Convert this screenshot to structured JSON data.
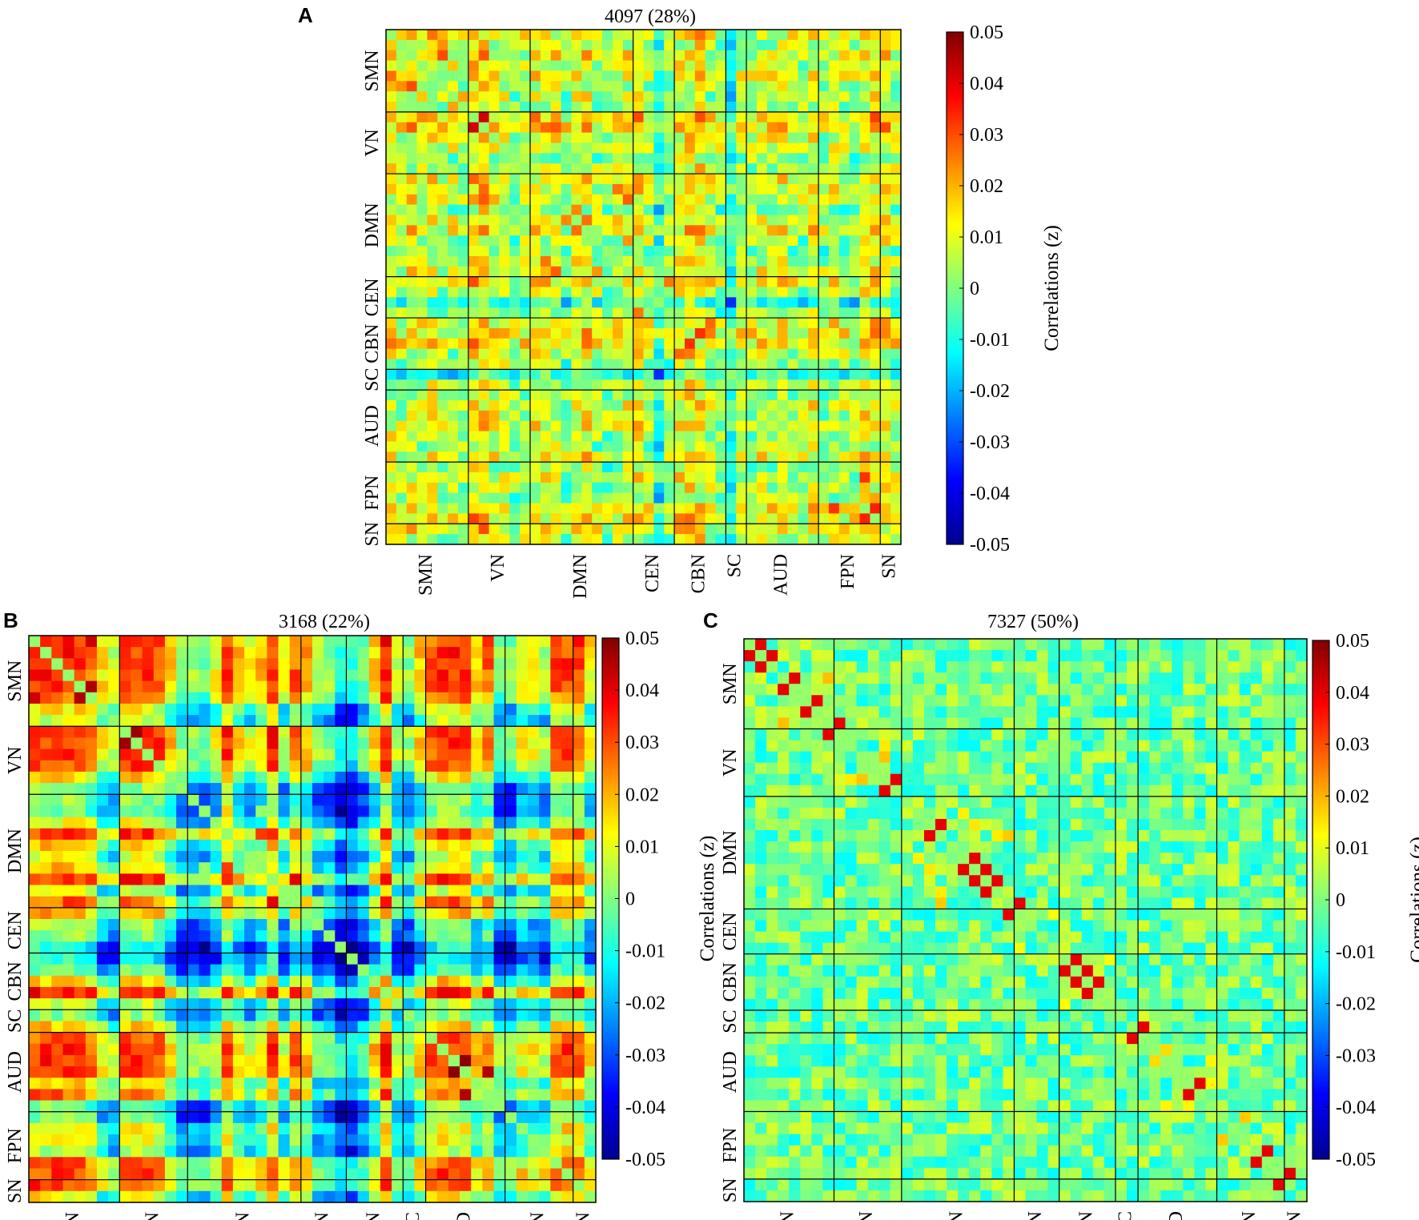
{
  "chart_data": [
    {
      "type": "heatmap",
      "panel": "A",
      "title": "4097 (28%)",
      "networks": [
        "SMN",
        "VN",
        "DMN",
        "CEN",
        "CBN",
        "SC",
        "AUD",
        "FPN",
        "SN"
      ],
      "network_sizes": [
        8,
        6,
        10,
        4,
        5,
        2,
        7,
        6,
        2
      ],
      "colorbar": {
        "label": "Correlations (z)",
        "vmin": -0.05,
        "vmax": 0.05,
        "ticks": [
          "0.05",
          "0.04",
          "0.03",
          "0.02",
          "0.01",
          "0",
          "-0.01",
          "-0.02",
          "-0.03",
          "-0.04",
          "-0.05"
        ]
      }
    },
    {
      "type": "heatmap",
      "panel": "B",
      "title": "3168 (22%)",
      "networks": [
        "SMN",
        "VN",
        "DMN",
        "CEN",
        "CBN",
        "SC",
        "AUD",
        "FPN",
        "SN"
      ],
      "network_sizes": [
        8,
        6,
        10,
        4,
        5,
        2,
        7,
        6,
        2
      ],
      "colorbar": {
        "label": "Correlations (z)",
        "vmin": -0.05,
        "vmax": 0.05,
        "ticks": [
          "0.05",
          "0.04",
          "0.03",
          "0.02",
          "0.01",
          "0",
          "-0.01",
          "-0.02",
          "-0.03",
          "-0.04",
          "-0.05"
        ]
      }
    },
    {
      "type": "heatmap",
      "panel": "C",
      "title": "7327 (50%)",
      "networks": [
        "SMN",
        "VN",
        "DMN",
        "CEN",
        "CBN",
        "SC",
        "AUD",
        "FPN",
        "SN"
      ],
      "network_sizes": [
        8,
        6,
        10,
        4,
        5,
        2,
        7,
        6,
        2
      ],
      "colorbar": {
        "label": "Correlations (z)",
        "vmin": -0.05,
        "vmax": 0.05,
        "ticks": [
          "0.05",
          "0.04",
          "0.03",
          "0.02",
          "0.01",
          "0",
          "-0.01",
          "-0.02",
          "-0.03",
          "-0.04",
          "-0.05"
        ]
      }
    }
  ]
}
